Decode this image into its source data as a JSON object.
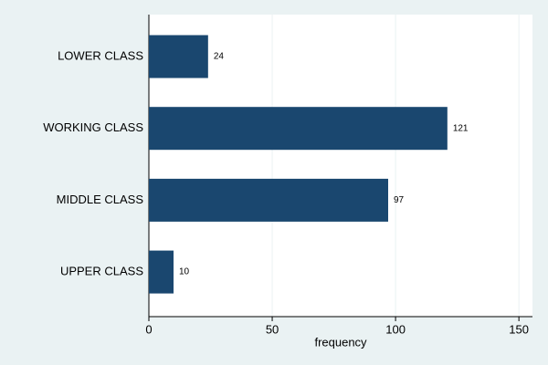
{
  "chart_data": {
    "type": "hbar",
    "categories": [
      "LOWER CLASS",
      "WORKING CLASS",
      "MIDDLE CLASS",
      "UPPER CLASS"
    ],
    "values": [
      24,
      121,
      97,
      10
    ],
    "color": "#1a476f",
    "xlabel": "frequency",
    "xlim": [
      0,
      155.5
    ],
    "xticks": [
      0,
      50,
      100,
      150
    ],
    "grid": true
  }
}
